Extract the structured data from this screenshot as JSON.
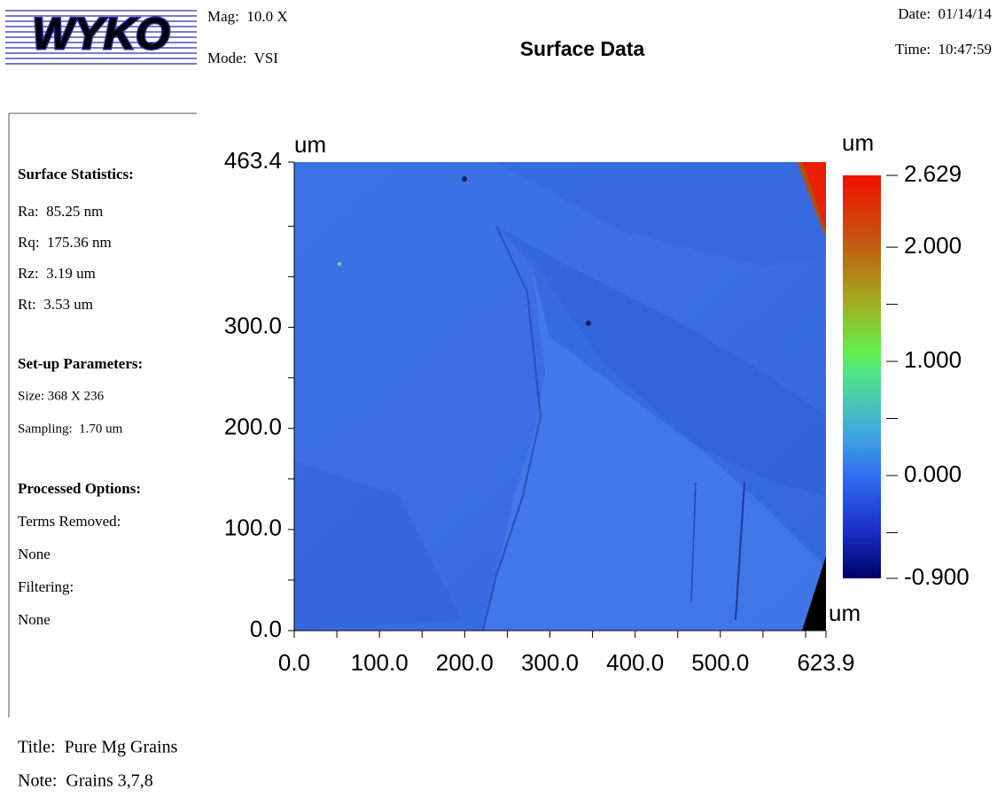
{
  "header": {
    "logo": "WYKO",
    "mag": "Mag:  10.0 X",
    "mode": "Mode:  VSI",
    "title": "Surface Data",
    "date": "Date:  01/14/14",
    "time": "Time:  10:47:59"
  },
  "sidebar": {
    "sections": [
      {
        "heading": "Surface Statistics:",
        "lines": [
          "Ra:  85.25 nm",
          "Rq:  175.36 nm",
          "Rz:  3.19 um",
          "Rt:  3.53 um"
        ]
      },
      {
        "heading": "Set-up Parameters:",
        "lines": [
          "Size: 368 X 236",
          "Sampling:  1.70 um"
        ]
      },
      {
        "heading": "Processed Options:",
        "lines": [
          "Terms Removed:",
          "None",
          "Filtering:",
          "None"
        ]
      }
    ]
  },
  "footer": {
    "title": "Title:  Pure Mg Grains",
    "note": "Note:  Grains 3,7,8"
  },
  "chart_data": {
    "type": "heatmap",
    "x_label": "um",
    "y_label": "um",
    "colorbar_label": "um",
    "xlim": [
      0,
      623.9
    ],
    "xticks": [
      {
        "value": 0,
        "label": "0.0"
      },
      {
        "value": 100,
        "label": "100.0"
      },
      {
        "value": 200,
        "label": "200.0"
      },
      {
        "value": 300,
        "label": "300.0"
      },
      {
        "value": 400,
        "label": "400.0"
      },
      {
        "value": 500,
        "label": "500.0"
      },
      623.9
    ],
    "xminorticks": [
      50,
      150,
      250,
      350,
      450,
      550,
      600
    ],
    "ylim": [
      0,
      463.4
    ],
    "yticks": [
      {
        "value": 0,
        "label": "0.0"
      },
      {
        "value": 100,
        "label": "100.0"
      },
      {
        "value": 200,
        "label": "200.0"
      },
      {
        "value": 300,
        "label": "300.0"
      },
      463.4
    ],
    "yminorticks": [
      50,
      150,
      250,
      350,
      400
    ],
    "zlim": [
      -0.9,
      2.629
    ],
    "zticks": [
      2.629,
      {
        "value": 2,
        "label": "2.000"
      },
      {
        "value": 1,
        "label": "1.000"
      },
      {
        "value": 0,
        "label": "0.000"
      },
      {
        "value": -0.9,
        "label": "-0.900"
      }
    ],
    "zminorticks": [
      -0.5,
      0.5,
      1.5
    ]
  }
}
